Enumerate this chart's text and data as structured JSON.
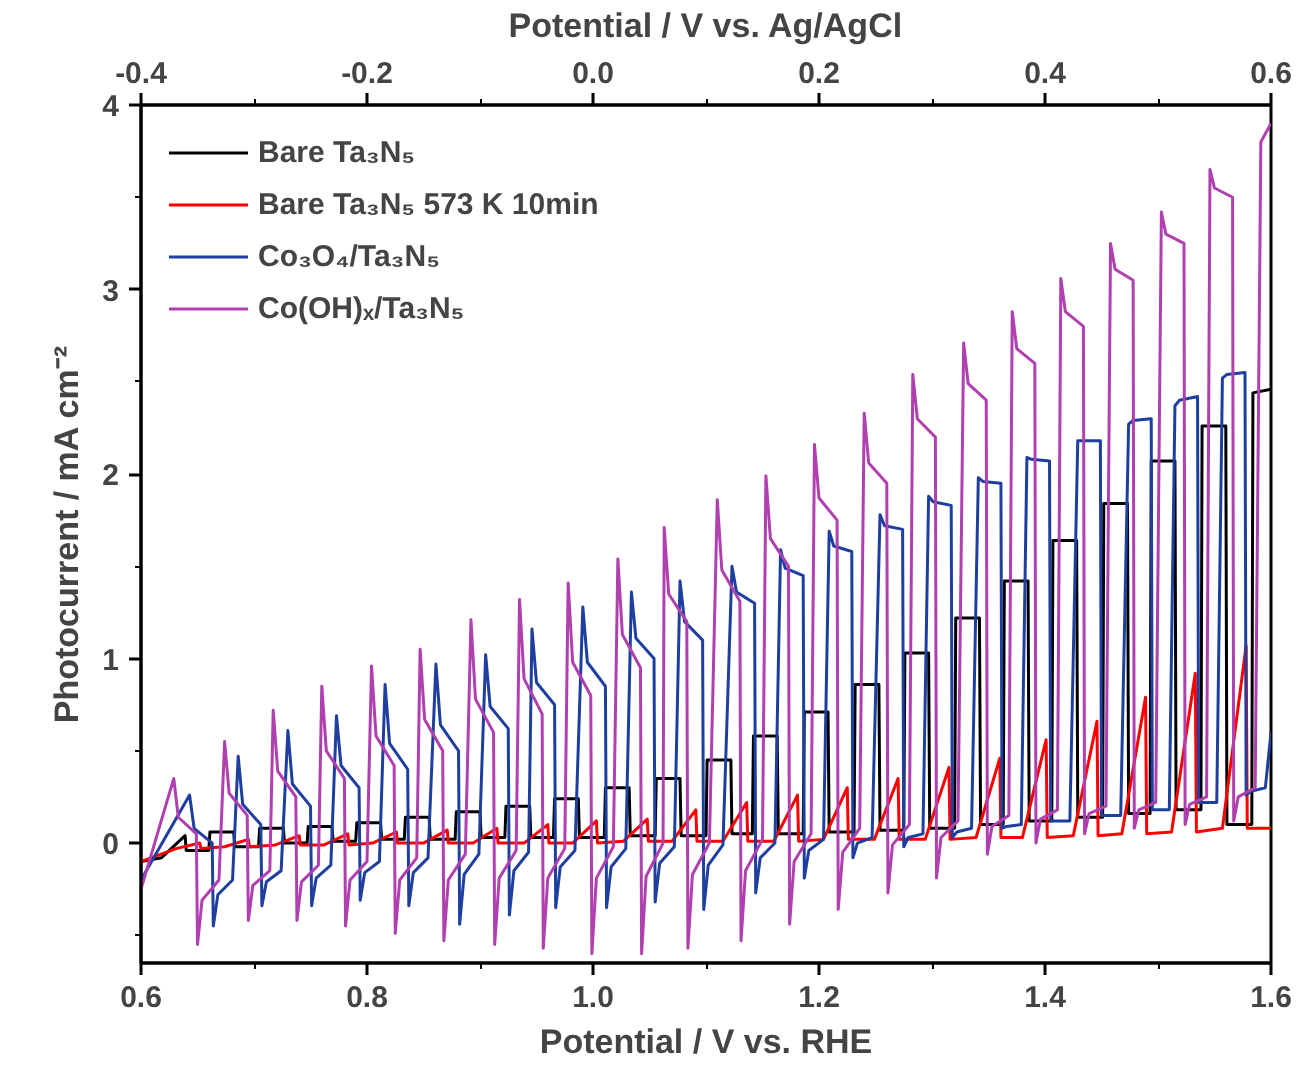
{
  "chart_data": {
    "type": "line",
    "xlabel": "Potential / V vs. RHE",
    "x2label": "Potential / V vs. Ag/AgCl",
    "ylabel": "Photocurrent / mA cm⁻²",
    "xlim": [
      0.6,
      1.6
    ],
    "xticks": [
      0.6,
      0.8,
      {
        "value": 1,
        "label": "1.0"
      },
      1.2,
      1.4,
      1.6,
      {
        "value": 0.7,
        "label": null
      },
      {
        "value": 0.9,
        "label": null
      },
      {
        "value": 1.1,
        "label": null
      },
      {
        "value": 1.3,
        "label": null
      },
      {
        "value": 1.5,
        "label": null
      }
    ],
    "x2lim": [
      -0.4,
      0.6
    ],
    "x2ticks": [
      -0.4,
      -0.2,
      {
        "value": 0,
        "label": "0.0"
      },
      0.2,
      0.4,
      0.6,
      {
        "value": -0.3,
        "label": null
      },
      {
        "value": -0.1,
        "label": null
      },
      {
        "value": 0.1,
        "label": null
      },
      {
        "value": 0.3,
        "label": null
      },
      {
        "value": 0.5,
        "label": null
      }
    ],
    "ylim": [
      -0.65,
      4
    ],
    "yticks": [
      0,
      1,
      2,
      3,
      4,
      {
        "value": -0.5,
        "label": null
      },
      {
        "value": 0.5,
        "label": null
      },
      {
        "value": 1.5,
        "label": null
      },
      {
        "value": 2.5,
        "label": null
      },
      {
        "value": 3.5,
        "label": null
      }
    ],
    "legend": "top left",
    "line_style": "solid",
    "series": [
      {
        "name": "Bare Ta₃N₅",
        "color": "#000000",
        "x": [
          0.6,
          0.618,
          0.639,
          0.64,
          0.66,
          0.661,
          0.682,
          0.683,
          0.704,
          0.705,
          0.726,
          0.727,
          0.747,
          0.748,
          0.769,
          0.77,
          0.79,
          0.791,
          0.812,
          0.813,
          0.833,
          0.834,
          0.855,
          0.856,
          0.878,
          0.879,
          0.9,
          0.901,
          0.922,
          0.923,
          0.944,
          0.945,
          0.965,
          0.966,
          0.987,
          0.988,
          1.01,
          1.011,
          1.032,
          1.033,
          1.055,
          1.056,
          1.077,
          1.078,
          1.1,
          1.101,
          1.122,
          1.123,
          1.141,
          1.142,
          1.163,
          1.164,
          1.186,
          1.187,
          1.208,
          1.209,
          1.231,
          1.232,
          1.253,
          1.254,
          1.275,
          1.276,
          1.297,
          1.298,
          1.32,
          1.321,
          1.342,
          1.343,
          1.363,
          1.364,
          1.385,
          1.386,
          1.406,
          1.407,
          1.428,
          1.429,
          1.451,
          1.452,
          1.473,
          1.474,
          1.493,
          1.494,
          1.515,
          1.516,
          1.538,
          1.539,
          1.56,
          1.561,
          1.583,
          1.584,
          1.6
        ],
        "values": [
          -0.1,
          -0.08,
          0.04,
          -0.04,
          -0.04,
          0.06,
          0.06,
          -0.02,
          -0.02,
          0.08,
          0.08,
          0.0,
          0.0,
          0.09,
          0.09,
          0.01,
          0.01,
          0.11,
          0.11,
          0.02,
          0.02,
          0.14,
          0.14,
          0.02,
          0.02,
          0.17,
          0.17,
          0.03,
          0.03,
          0.2,
          0.2,
          0.03,
          0.03,
          0.24,
          0.24,
          0.03,
          0.03,
          0.3,
          0.3,
          0.04,
          0.04,
          0.35,
          0.35,
          0.04,
          0.04,
          0.45,
          0.45,
          0.05,
          0.05,
          0.58,
          0.58,
          0.05,
          0.05,
          0.71,
          0.71,
          0.06,
          0.06,
          0.86,
          0.86,
          0.07,
          0.07,
          1.03,
          1.03,
          0.08,
          0.08,
          1.22,
          1.22,
          0.1,
          0.1,
          1.42,
          1.42,
          0.12,
          0.12,
          1.64,
          1.64,
          0.14,
          0.14,
          1.84,
          1.84,
          0.16,
          0.16,
          2.07,
          2.07,
          0.18,
          0.18,
          2.26,
          2.26,
          0.1,
          0.1,
          2.44,
          2.46
        ]
      },
      {
        "name": "Bare Ta₃N₅ 573 K 10min",
        "color": "#ff0000",
        "x": [
          0.6,
          0.631,
          0.652,
          0.653,
          0.674,
          0.695,
          0.696,
          0.719,
          0.74,
          0.741,
          0.762,
          0.783,
          0.784,
          0.805,
          0.826,
          0.827,
          0.85,
          0.871,
          0.872,
          0.894,
          0.915,
          0.916,
          0.939,
          0.96,
          0.961,
          0.982,
          1.003,
          1.004,
          1.027,
          1.048,
          1.049,
          1.07,
          1.091,
          1.092,
          1.115,
          1.136,
          1.137,
          1.16,
          1.181,
          1.182,
          1.204,
          1.225,
          1.226,
          1.249,
          1.27,
          1.271,
          1.294,
          1.315,
          1.316,
          1.339,
          1.36,
          1.361,
          1.38,
          1.401,
          1.402,
          1.425,
          1.446,
          1.447,
          1.468,
          1.489,
          1.49,
          1.512,
          1.533,
          1.534,
          1.557,
          1.578,
          1.579,
          1.6
        ],
        "values": [
          -0.1,
          -0.03,
          0.0,
          -0.03,
          -0.02,
          0.02,
          -0.02,
          -0.01,
          0.04,
          -0.01,
          -0.01,
          0.05,
          -0.01,
          0.0,
          0.06,
          0.0,
          0.0,
          0.07,
          0.0,
          0.0,
          0.08,
          0.0,
          0.0,
          0.1,
          0.0,
          0.0,
          0.12,
          0.0,
          0.01,
          0.13,
          0.01,
          0.01,
          0.18,
          0.01,
          0.01,
          0.22,
          0.01,
          0.01,
          0.26,
          0.01,
          0.02,
          0.3,
          0.02,
          0.02,
          0.35,
          0.02,
          0.02,
          0.41,
          0.02,
          0.03,
          0.46,
          0.03,
          0.03,
          0.56,
          0.03,
          0.04,
          0.66,
          0.04,
          0.05,
          0.79,
          0.05,
          0.06,
          0.92,
          0.06,
          0.08,
          1.07,
          0.08,
          0.08
        ]
      },
      {
        "name": "Co₃O₄/Ta₃N₅",
        "color": "#1f3fa0",
        "x": [
          0.6,
          0.643,
          0.647,
          0.663,
          0.664,
          0.668,
          0.681,
          0.686,
          0.69,
          0.706,
          0.707,
          0.711,
          0.724,
          0.73,
          0.734,
          0.75,
          0.751,
          0.755,
          0.768,
          0.773,
          0.777,
          0.793,
          0.794,
          0.798,
          0.811,
          0.816,
          0.82,
          0.836,
          0.837,
          0.841,
          0.854,
          0.861,
          0.865,
          0.881,
          0.882,
          0.886,
          0.899,
          0.905,
          0.909,
          0.925,
          0.926,
          0.93,
          0.943,
          0.946,
          0.95,
          0.966,
          0.967,
          0.971,
          0.984,
          0.991,
          0.995,
          1.011,
          1.012,
          1.016,
          1.029,
          1.034,
          1.038,
          1.054,
          1.055,
          1.059,
          1.072,
          1.077,
          1.081,
          1.097,
          1.098,
          1.102,
          1.115,
          1.123,
          1.127,
          1.143,
          1.144,
          1.148,
          1.161,
          1.166,
          1.17,
          1.186,
          1.187,
          1.191,
          1.204,
          1.209,
          1.213,
          1.229,
          1.23,
          1.234,
          1.247,
          1.254,
          1.258,
          1.274,
          1.275,
          1.279,
          1.292,
          1.297,
          1.301,
          1.317,
          1.318,
          1.322,
          1.335,
          1.341,
          1.345,
          1.361,
          1.362,
          1.366,
          1.379,
          1.384,
          1.388,
          1.404,
          1.405,
          1.409,
          1.422,
          1.429,
          1.433,
          1.449,
          1.45,
          1.454,
          1.467,
          1.474,
          1.478,
          1.494,
          1.495,
          1.499,
          1.51,
          1.515,
          1.519,
          1.535,
          1.536,
          1.54,
          1.552,
          1.557,
          1.561,
          1.577,
          1.578,
          1.582,
          1.595,
          1.6
        ],
        "values": [
          -0.2,
          0.26,
          0.08,
          0.0,
          -0.45,
          -0.28,
          -0.2,
          0.47,
          0.21,
          0.1,
          -0.34,
          -0.21,
          -0.15,
          0.61,
          0.32,
          0.2,
          -0.34,
          -0.19,
          -0.12,
          0.69,
          0.42,
          0.3,
          -0.31,
          -0.16,
          -0.1,
          0.86,
          0.54,
          0.4,
          -0.34,
          -0.16,
          -0.08,
          0.97,
          0.64,
          0.5,
          -0.44,
          -0.17,
          -0.06,
          1.02,
          0.74,
          0.62,
          -0.39,
          -0.15,
          -0.05,
          1.16,
          0.87,
          0.75,
          -0.35,
          -0.13,
          -0.04,
          1.28,
          0.98,
          0.85,
          -0.35,
          -0.13,
          -0.03,
          1.36,
          1.11,
          1.0,
          -0.32,
          -0.11,
          -0.02,
          1.42,
          1.2,
          1.1,
          -0.36,
          -0.12,
          -0.01,
          1.5,
          1.36,
          1.3,
          -0.27,
          -0.08,
          0.0,
          1.59,
          1.49,
          1.45,
          -0.19,
          -0.04,
          0.02,
          1.69,
          1.61,
          1.58,
          -0.08,
          0.0,
          0.03,
          1.78,
          1.72,
          1.7,
          -0.02,
          0.03,
          0.05,
          1.88,
          1.85,
          1.83,
          0.03,
          0.06,
          0.08,
          1.98,
          1.96,
          1.95,
          0.08,
          0.09,
          0.1,
          2.09,
          2.08,
          2.07,
          0.12,
          0.12,
          0.12,
          2.18,
          2.18,
          2.18,
          0.15,
          0.15,
          0.15,
          2.27,
          2.29,
          2.3,
          0.18,
          0.18,
          0.18,
          2.37,
          2.4,
          2.42,
          0.22,
          0.22,
          0.22,
          2.52,
          2.54,
          2.55,
          0.26,
          0.28,
          0.3,
          0.6
        ]
      },
      {
        "name": "Co(OH)ₓ/Ta₃N₅",
        "color": "#b040b0",
        "x": [
          0.6,
          0.629,
          0.633,
          0.649,
          0.65,
          0.654,
          0.669,
          0.674,
          0.678,
          0.694,
          0.695,
          0.699,
          0.714,
          0.717,
          0.721,
          0.737,
          0.738,
          0.742,
          0.757,
          0.76,
          0.764,
          0.78,
          0.781,
          0.785,
          0.8,
          0.804,
          0.808,
          0.824,
          0.825,
          0.829,
          0.844,
          0.847,
          0.851,
          0.867,
          0.868,
          0.872,
          0.887,
          0.892,
          0.896,
          0.912,
          0.913,
          0.917,
          0.932,
          0.935,
          0.939,
          0.955,
          0.956,
          0.96,
          0.975,
          0.978,
          0.982,
          0.998,
          0.999,
          1.003,
          1.018,
          1.022,
          1.026,
          1.042,
          1.043,
          1.047,
          1.062,
          1.063,
          1.067,
          1.083,
          1.084,
          1.088,
          1.103,
          1.11,
          1.114,
          1.13,
          1.131,
          1.135,
          1.15,
          1.153,
          1.157,
          1.173,
          1.174,
          1.178,
          1.193,
          1.196,
          1.2,
          1.216,
          1.217,
          1.221,
          1.236,
          1.24,
          1.244,
          1.26,
          1.261,
          1.265,
          1.28,
          1.283,
          1.287,
          1.303,
          1.304,
          1.308,
          1.323,
          1.328,
          1.332,
          1.348,
          1.349,
          1.353,
          1.368,
          1.371,
          1.375,
          1.391,
          1.392,
          1.396,
          1.411,
          1.414,
          1.418,
          1.434,
          1.435,
          1.439,
          1.454,
          1.458,
          1.462,
          1.478,
          1.479,
          1.483,
          1.498,
          1.503,
          1.507,
          1.523,
          1.524,
          1.528,
          1.543,
          1.546,
          1.55,
          1.566,
          1.567,
          1.571,
          1.586,
          1.591,
          1.6
        ],
        "values": [
          -0.25,
          0.35,
          0.14,
          0.05,
          -0.55,
          -0.31,
          -0.2,
          0.55,
          0.27,
          0.15,
          -0.42,
          -0.23,
          -0.15,
          0.72,
          0.39,
          0.25,
          -0.42,
          -0.21,
          -0.12,
          0.85,
          0.5,
          0.35,
          -0.45,
          -0.2,
          -0.1,
          0.96,
          0.58,
          0.42,
          -0.49,
          -0.2,
          -0.08,
          1.05,
          0.67,
          0.5,
          -0.53,
          -0.2,
          -0.06,
          1.21,
          0.78,
          0.6,
          -0.55,
          -0.19,
          -0.04,
          1.32,
          0.89,
          0.7,
          -0.57,
          -0.19,
          -0.03,
          1.41,
          0.98,
          0.8,
          -0.6,
          -0.19,
          -0.02,
          1.54,
          1.13,
          0.95,
          -0.6,
          -0.18,
          0.0,
          1.71,
          1.35,
          1.2,
          -0.57,
          -0.17,
          0.0,
          1.86,
          1.48,
          1.31,
          -0.53,
          -0.15,
          0.02,
          1.99,
          1.65,
          1.5,
          -0.44,
          -0.1,
          0.05,
          2.16,
          1.87,
          1.75,
          -0.36,
          -0.05,
          0.08,
          2.33,
          2.06,
          1.95,
          -0.27,
          -0.01,
          0.1,
          2.54,
          2.3,
          2.2,
          -0.19,
          0.03,
          0.12,
          2.71,
          2.49,
          2.4,
          -0.06,
          0.09,
          0.15,
          2.88,
          2.68,
          2.6,
          0.0,
          0.13,
          0.18,
          3.06,
          2.88,
          2.8,
          0.05,
          0.16,
          0.2,
          3.25,
          3.11,
          3.05,
          0.08,
          0.18,
          0.22,
          3.42,
          3.3,
          3.25,
          0.1,
          0.21,
          0.25,
          3.65,
          3.55,
          3.5,
          0.12,
          0.25,
          0.3,
          3.8,
          3.9
        ]
      }
    ]
  }
}
